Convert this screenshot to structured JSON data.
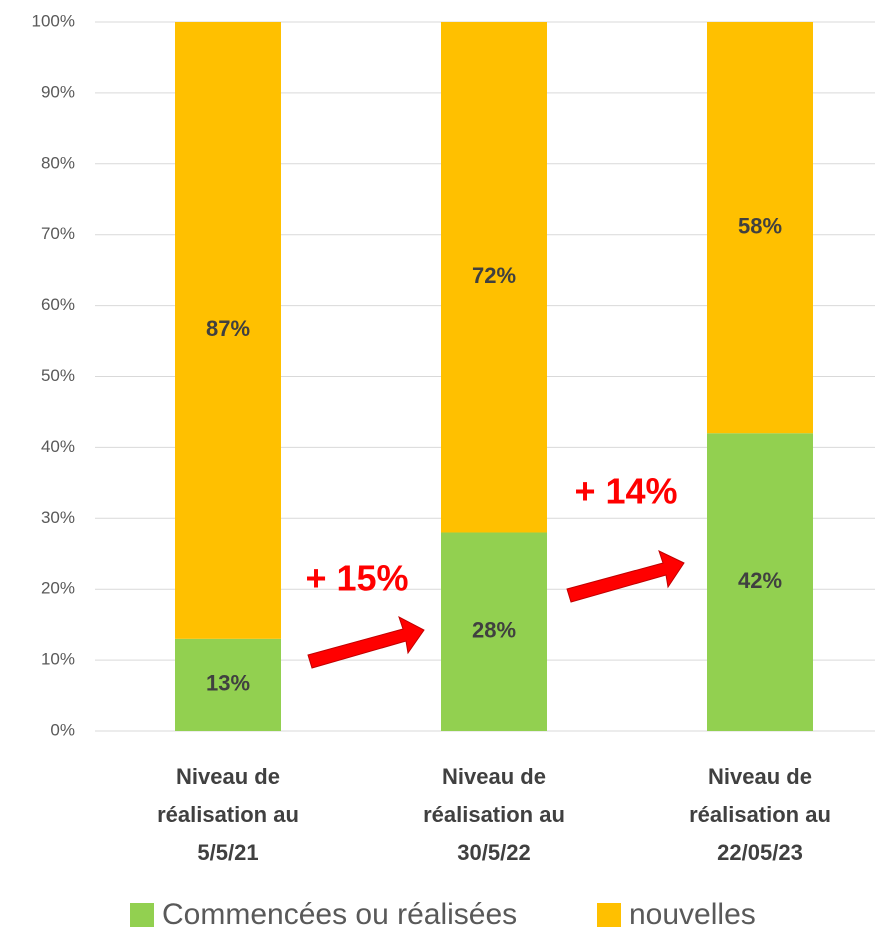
{
  "chart_data": {
    "type": "stacked_bar",
    "categories": [
      "Niveau de réalisation au 5/5/21",
      "Niveau de réalisation au 30/5/22",
      "Niveau de réalisation au 22/05/23"
    ],
    "series": [
      {
        "name": "Commencées ou réalisées",
        "color": "#92d050",
        "values": [
          13,
          28,
          42
        ],
        "value_labels": [
          "13%",
          "28%",
          "42%"
        ]
      },
      {
        "name": "nouvelles",
        "color": "#ffc000",
        "values": [
          87,
          72,
          58
        ],
        "value_labels": [
          "87%",
          "72%",
          "58%"
        ]
      }
    ],
    "ylim": [
      0,
      100
    ],
    "yticks": [
      {
        "value": 0,
        "label": "0%"
      },
      {
        "value": 10,
        "label": "10%"
      },
      {
        "value": 20,
        "label": "20%"
      },
      {
        "value": 30,
        "label": "30%"
      },
      {
        "value": 40,
        "label": "40%"
      },
      {
        "value": 50,
        "label": "50%"
      },
      {
        "value": 60,
        "label": "60%"
      },
      {
        "value": 70,
        "label": "70%"
      },
      {
        "value": 80,
        "label": "80%"
      },
      {
        "value": 90,
        "label": "90%"
      },
      {
        "value": 100,
        "label": "100%"
      }
    ],
    "grid": true,
    "annotations": [
      "+ 15%",
      "+ 14%"
    ]
  }
}
